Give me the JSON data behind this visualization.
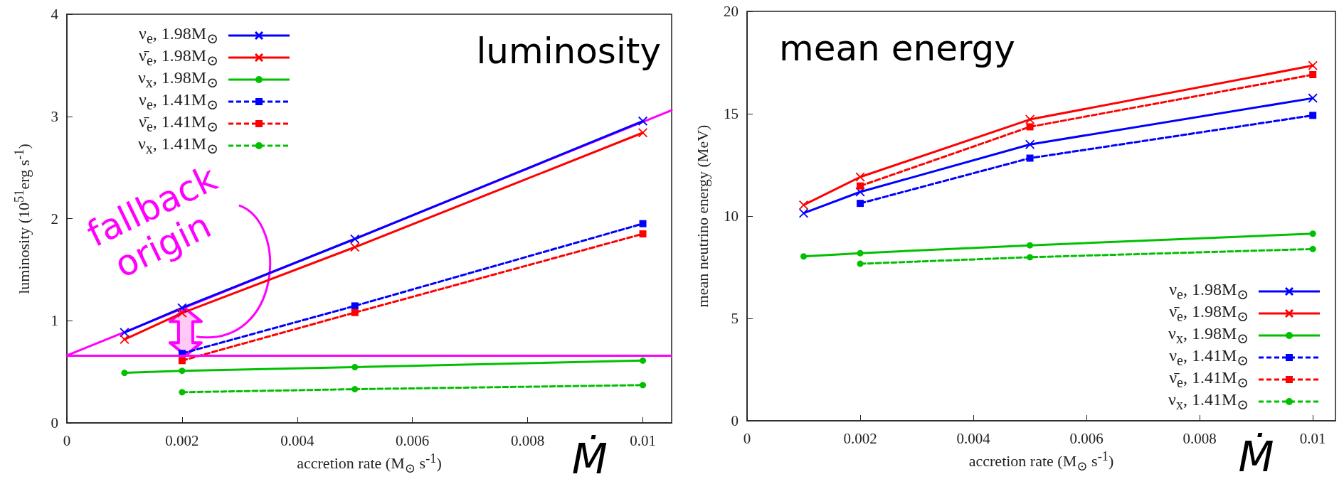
{
  "chart_data": [
    {
      "type": "line",
      "title": "luminosity",
      "xlabel": "accretion rate (M$_{⊙}$ s$^{-1}$)",
      "ylabel": "luminosity (10$^{51}$erg s$^{-1}$)",
      "x": [
        0.001,
        0.002,
        0.005,
        0.01
      ],
      "xlim": [
        0,
        0.0105
      ],
      "xticks": [
        0,
        0.002,
        0.004,
        0.006,
        0.008,
        0.01
      ],
      "ylim": [
        0,
        4
      ],
      "yticks": [
        0,
        1,
        2,
        3,
        4
      ],
      "grid": false,
      "legend": "top left",
      "series": [
        {
          "name": "ν$_{e}$, 1.98M$_{⊙}$",
          "color": "#0000ff",
          "values": [
            0.885,
            1.126,
            1.8,
            2.954
          ],
          "marker": "cross",
          "line_style": "solid"
        },
        {
          "name": "ν̄$_{e}$, 1.98M$_{⊙}$",
          "color": "#ff0000",
          "values": [
            0.817,
            1.076,
            1.72,
            2.84
          ],
          "marker": "cross",
          "line_style": "solid"
        },
        {
          "name": "ν$_{x}$, 1.98M$_{⊙}$",
          "color": "#00c000",
          "values": [
            0.49,
            0.51,
            0.546,
            0.61
          ],
          "marker": "circle",
          "line_style": "solid"
        },
        {
          "name": "ν$_{e}$, 1.41M$_{⊙}$",
          "color": "#0000ff",
          "values": [
            null,
            0.68,
            1.145,
            1.95
          ],
          "marker": "square",
          "line_style": "dashed"
        },
        {
          "name": "ν̄$_{e}$, 1.41M$_{⊙}$",
          "color": "#ff0000",
          "values": [
            null,
            0.61,
            1.08,
            1.85
          ],
          "marker": "square",
          "line_style": "dashed"
        },
        {
          "name": "ν$_{x}$, 1.41M$_{⊙}$",
          "color": "#00c000",
          "values": [
            null,
            0.3,
            0.33,
            0.37
          ],
          "marker": "circle",
          "line_style": "dashed"
        },
        {
          "type": "line",
          "color": "#ff00ff",
          "x": [
            0,
            0.0105
          ],
          "values": [
            0.66,
            3.06
          ],
          "marker": "none",
          "line_style": "solid"
        }
      ],
      "ref_lines": [
        {
          "axis": "y",
          "value": 0.66,
          "color": "#ff00ff"
        }
      ],
      "annotations": [
        "fallback origin",
        "Ṁ"
      ]
    },
    {
      "type": "line",
      "title": "mean energy",
      "xlabel": "accretion rate (M$_{⊙}$ s$^{-1}$)",
      "ylabel": "mean neutrino energy (MeV)",
      "x": [
        0.001,
        0.002,
        0.005,
        0.01
      ],
      "xlim": [
        0,
        0.0104
      ],
      "xticks": [
        0,
        0.002,
        0.004,
        0.006,
        0.008,
        0.01
      ],
      "ylim": [
        0,
        20
      ],
      "yticks": [
        0,
        5,
        10,
        15,
        20
      ],
      "grid": false,
      "legend": "bottom right",
      "series": [
        {
          "name": "ν$_{e}$, 1.98M$_{⊙}$",
          "color": "#0000ff",
          "values": [
            10.14,
            11.18,
            13.5,
            15.76
          ],
          "marker": "cross",
          "line_style": "solid"
        },
        {
          "name": "ν̄$_{e}$, 1.98M$_{⊙}$",
          "color": "#ff0000",
          "values": [
            10.54,
            11.91,
            14.72,
            17.35
          ],
          "marker": "cross",
          "line_style": "solid"
        },
        {
          "name": "ν$_{x}$, 1.98M$_{⊙}$",
          "color": "#00c000",
          "values": [
            8.03,
            8.19,
            8.57,
            9.14
          ],
          "marker": "circle",
          "line_style": "solid"
        },
        {
          "name": "ν$_{e}$, 1.41M$_{⊙}$",
          "color": "#0000ff",
          "values": [
            null,
            10.62,
            12.83,
            14.92
          ],
          "marker": "square",
          "line_style": "dashed"
        },
        {
          "name": "ν̄$_{e}$, 1.41M$_{⊙}$",
          "color": "#ff0000",
          "values": [
            null,
            11.47,
            14.36,
            16.91
          ],
          "marker": "square",
          "line_style": "dashed"
        },
        {
          "name": "ν$_{x}$, 1.41M$_{⊙}$",
          "color": "#00c000",
          "values": [
            null,
            7.67,
            7.99,
            8.39
          ],
          "marker": "circle",
          "line_style": "dashed"
        }
      ],
      "annotations": [
        "Ṁ"
      ]
    }
  ]
}
